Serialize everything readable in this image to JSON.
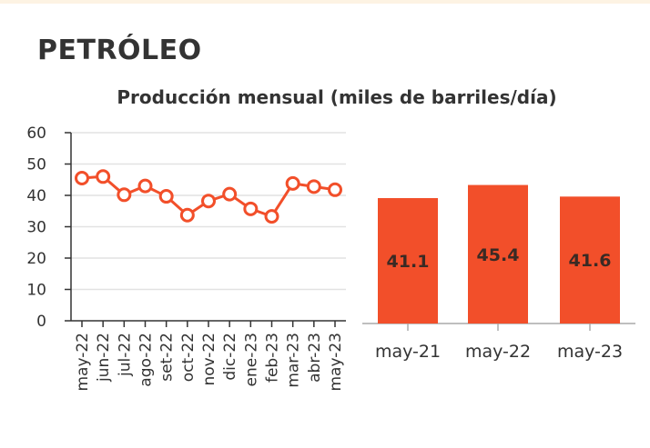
{
  "header": {
    "title": "PETRÓLEO",
    "subtitle": "Producción mensual (miles de barriles/día)"
  },
  "colors": {
    "accent": "#f24f2a",
    "grid": "#e2e2e2",
    "axis": "#333333",
    "topbar": "#fdf3e3"
  },
  "chart_data": [
    {
      "type": "line",
      "x": [
        "may-22",
        "jun-22",
        "jul-22",
        "ago-22",
        "set-22",
        "oct-22",
        "nov-22",
        "dic-22",
        "ene-23",
        "feb-23",
        "mar-23",
        "abr-23",
        "may-23"
      ],
      "series": [
        {
          "values": [
            45.5,
            46.0,
            40.2,
            43.0,
            39.7,
            33.7,
            38.2,
            40.4,
            35.7,
            33.3,
            43.8,
            42.8,
            41.8
          ]
        }
      ],
      "ylim": [
        0,
        60
      ],
      "yticks": [
        0,
        10,
        20,
        30,
        40,
        50,
        60
      ],
      "grid": true
    },
    {
      "type": "bar",
      "categories": [
        "may-21",
        "may-22",
        "may-23"
      ],
      "values": [
        41.1,
        45.4,
        41.6
      ],
      "data_labels": [
        "41.1",
        "45.4",
        "41.6"
      ]
    }
  ]
}
